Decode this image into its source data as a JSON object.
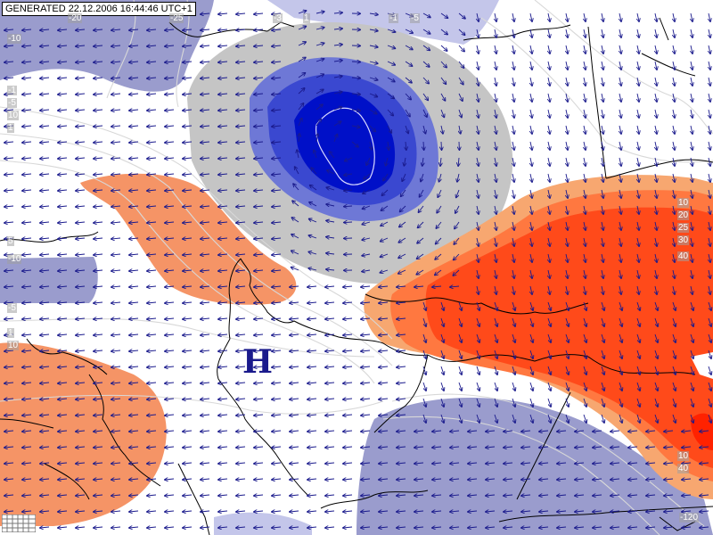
{
  "generated_label": "GENERATED 22.12.2006 16:44:46 UTC+1",
  "pressure_center": "H",
  "colors": {
    "light_blue": "#9a9ccd",
    "pale_blue": "#c4c6ea",
    "grey": "#c5c5c5",
    "deep_blue": "#0010c8",
    "mid_blue": "#2a3ad0",
    "orange": "#f59466",
    "red_orange": "#ff4a1a",
    "red": "#ff2200",
    "wind_arrow": "#1a1a8c",
    "isoline": "#d8d8d8",
    "border": "#000000"
  },
  "isoline_labels": [
    "-10",
    "-1",
    "-5",
    "10",
    "1",
    "5",
    "-10",
    "-5",
    "1",
    "10",
    "10",
    "20",
    "25",
    "30",
    "40",
    "10",
    "40",
    "-3",
    "-1",
    "-5",
    "1",
    "-120",
    "-20",
    "-25"
  ],
  "legend_icon": "grid-legend-icon"
}
